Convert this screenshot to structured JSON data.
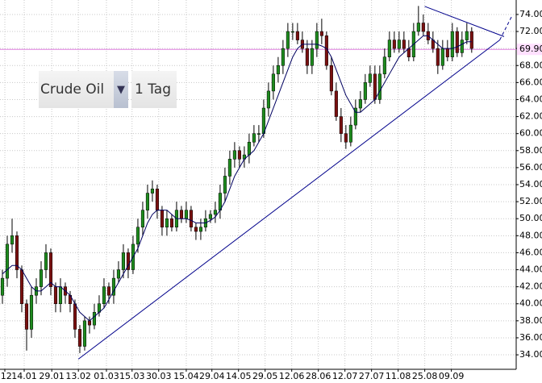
{
  "chart_data": {
    "type": "candlestick",
    "open": [
      41,
      43,
      47,
      48,
      44,
      40,
      37,
      41,
      42,
      44,
      46,
      42,
      40,
      42,
      41,
      40,
      37,
      35,
      38,
      37.5,
      39,
      40,
      42,
      41,
      43,
      44,
      46,
      44,
      47,
      49,
      51,
      53,
      53.5,
      51,
      49,
      50,
      49,
      51,
      50,
      51,
      49,
      48.5,
      49,
      50,
      50.5,
      51,
      53,
      55,
      57,
      58,
      57,
      57.5,
      59,
      60,
      60,
      63,
      65,
      67,
      68,
      70,
      72,
      72,
      71,
      70,
      68,
      70,
      72,
      71.5,
      68,
      65,
      62,
      60,
      59,
      61,
      63,
      64,
      66,
      67,
      64,
      67,
      69,
      71,
      70,
      71,
      70,
      69,
      72,
      73,
      72,
      71,
      70,
      68,
      70,
      69,
      72,
      69.5,
      71,
      72
    ],
    "high": [
      44,
      48,
      50,
      48.5,
      44.5,
      40.5,
      42,
      43,
      45,
      47,
      46.5,
      42.5,
      43,
      42.5,
      41.5,
      40.5,
      37.5,
      38.5,
      38.5,
      40,
      41,
      43,
      42.5,
      44,
      45,
      47,
      46.5,
      48,
      50,
      52,
      54,
      54.5,
      54,
      51.5,
      51,
      50.5,
      52,
      51.5,
      52,
      51.5,
      49.5,
      50,
      51,
      51,
      52,
      54,
      56,
      58,
      59,
      58.5,
      58.5,
      60,
      61,
      61,
      64,
      66,
      68,
      69,
      71,
      73,
      73,
      73,
      72,
      71,
      71,
      73,
      73.5,
      72,
      69,
      66,
      63,
      61,
      62,
      64,
      65,
      67,
      68,
      68,
      68,
      70,
      72,
      72,
      72,
      72,
      71,
      73,
      75,
      74,
      73,
      72,
      71,
      71,
      71,
      73,
      72.5,
      72,
      73,
      72.5
    ],
    "low": [
      40,
      42,
      46,
      43,
      39,
      34.5,
      36,
      40,
      41,
      43,
      41,
      39,
      39,
      40,
      39,
      36,
      34.2,
      34.5,
      36.5,
      37,
      38.5,
      39.5,
      40,
      40,
      42.5,
      43,
      43,
      43.5,
      46,
      48,
      50,
      52,
      50,
      48,
      48,
      48.5,
      48.5,
      49.5,
      49.5,
      48.5,
      47.5,
      47.5,
      48.5,
      49.5,
      49.5,
      50,
      52,
      54,
      56,
      56,
      56,
      56.5,
      58.5,
      59,
      59.5,
      62,
      64,
      66,
      67,
      69,
      71,
      70.5,
      69.5,
      67,
      67,
      69,
      70.5,
      67.5,
      64.5,
      61.5,
      59,
      58.2,
      58.5,
      60.5,
      62.5,
      63.5,
      65.5,
      63.5,
      63.5,
      66.5,
      68.5,
      69.5,
      69.5,
      69.5,
      68.5,
      68.5,
      71.5,
      71.5,
      70.5,
      69.5,
      67,
      67.5,
      68.5,
      68.5,
      69,
      69,
      70.5,
      69.5
    ],
    "close": [
      43,
      47,
      48,
      44,
      40,
      37,
      41,
      42,
      44,
      46,
      42,
      40,
      42,
      41,
      40,
      37,
      35,
      38,
      37.5,
      39,
      40,
      42,
      41,
      43,
      44,
      46,
      44,
      47,
      49,
      51,
      53,
      53.5,
      51,
      49,
      50,
      49,
      51,
      50,
      51,
      49,
      48.5,
      49,
      50,
      50.5,
      51,
      53,
      55,
      57,
      58,
      57,
      57.5,
      59,
      60,
      60,
      63,
      65,
      67,
      68,
      70,
      72,
      72,
      71,
      70,
      68,
      70,
      72,
      71.5,
      68,
      65,
      62,
      60,
      59,
      61,
      63,
      64,
      66,
      67,
      64,
      67,
      69,
      71,
      70,
      71,
      70,
      69,
      72,
      73,
      72,
      71,
      70,
      68,
      70,
      69,
      72,
      69.5,
      71,
      72,
      70
    ],
    "ma": [
      43.5,
      44,
      44.5,
      44.5,
      44,
      43,
      42,
      41.5,
      41.5,
      42,
      42.5,
      42,
      42,
      41.5,
      41,
      40,
      39,
      38.5,
      38,
      38.5,
      39,
      39.5,
      40.5,
      41.5,
      42.5,
      43.5,
      44.5,
      45.5,
      46.5,
      48,
      49.5,
      50.5,
      51,
      51,
      51,
      50.5,
      50,
      50,
      50,
      49.8,
      49.5,
      49.5,
      49.5,
      49.8,
      50.2,
      51,
      52,
      53.5,
      55,
      56,
      57,
      57.5,
      58,
      59,
      60,
      61.5,
      63,
      64.5,
      66,
      67.5,
      69,
      70,
      70.5,
      70.5,
      70.5,
      70.5,
      70.3,
      70,
      69,
      67.5,
      66,
      64.5,
      63.5,
      62.5,
      62.5,
      63,
      63.5,
      64,
      65,
      66,
      67,
      68,
      69,
      69.5,
      70,
      70.5,
      71,
      71.5,
      71.5,
      71,
      70.5,
      70,
      70,
      70,
      70.2,
      70.5,
      70.8,
      70.8
    ],
    "up_color": "#1e8c1e",
    "down_color": "#7a1010",
    "wick_color": "#000000",
    "ma_color": "#000060",
    "trend_color": "#00008b",
    "trendlines": [
      {
        "x": [
          15.7,
          102.8
        ],
        "y": [
          33.5,
          71.0
        ],
        "style": "solid"
      },
      {
        "x": [
          102.8,
          105.3
        ],
        "y": [
          71.0,
          73.8
        ],
        "style": "dashed"
      },
      {
        "x": [
          87.3,
          103.7
        ],
        "y": [
          74.95,
          71.4
        ],
        "style": "solid"
      }
    ],
    "hline": {
      "value": 69.9,
      "label": "69.90",
      "color": "#e080e0"
    },
    "xlim": [
      -0.5,
      106.2
    ],
    "xticks": [
      {
        "value": 0.5,
        "label": ".12"
      },
      {
        "value": 4.5,
        "label": "14.01"
      },
      {
        "value": 10.2,
        "label": "29.01"
      },
      {
        "value": 15.7,
        "label": "13.02"
      },
      {
        "value": 21.5,
        "label": "01.03"
      },
      {
        "value": 26.8,
        "label": "15.03"
      },
      {
        "value": 32.3,
        "label": "30.03"
      },
      {
        "value": 38,
        "label": "15.04"
      },
      {
        "value": 43.3,
        "label": "29.04"
      },
      {
        "value": 48.8,
        "label": "14.05"
      },
      {
        "value": 54.3,
        "label": "29.05"
      },
      {
        "value": 59.8,
        "label": "12.06"
      },
      {
        "value": 65.3,
        "label": "28.06"
      },
      {
        "value": 70.8,
        "label": "12.07"
      },
      {
        "value": 76.3,
        "label": "27.07"
      },
      {
        "value": 81.8,
        "label": "11.08"
      },
      {
        "value": 87.3,
        "label": "25.08"
      },
      {
        "value": 92.8,
        "label": "09.09"
      }
    ],
    "ylim": [
      32.3,
      75.7
    ],
    "yticks": [
      {
        "value": 34,
        "label": "34.00"
      },
      {
        "value": 36,
        "label": "36.00"
      },
      {
        "value": 38,
        "label": "38.00"
      },
      {
        "value": 40,
        "label": "40.00"
      },
      {
        "value": 42,
        "label": "42.00"
      },
      {
        "value": 44,
        "label": "44.00"
      },
      {
        "value": 46,
        "label": "46.00"
      },
      {
        "value": 48,
        "label": "48.00"
      },
      {
        "value": 50,
        "label": "50.00"
      },
      {
        "value": 52,
        "label": "52.00"
      },
      {
        "value": 54,
        "label": "54.00"
      },
      {
        "value": 56,
        "label": "56.00"
      },
      {
        "value": 58,
        "label": "58.00"
      },
      {
        "value": 60,
        "label": "60.00"
      },
      {
        "value": 62,
        "label": "62.00"
      },
      {
        "value": 64,
        "label": "64.00"
      },
      {
        "value": 66,
        "label": "66.00"
      },
      {
        "value": 68,
        "label": "68.00"
      },
      {
        "value": 70,
        "label": "70.00"
      },
      {
        "value": 72,
        "label": "72.00"
      },
      {
        "value": 74,
        "label": "74.00"
      }
    ],
    "grid": true,
    "controls": {
      "symbol": "Crude Oil",
      "timeframe": "1 Tag"
    }
  }
}
